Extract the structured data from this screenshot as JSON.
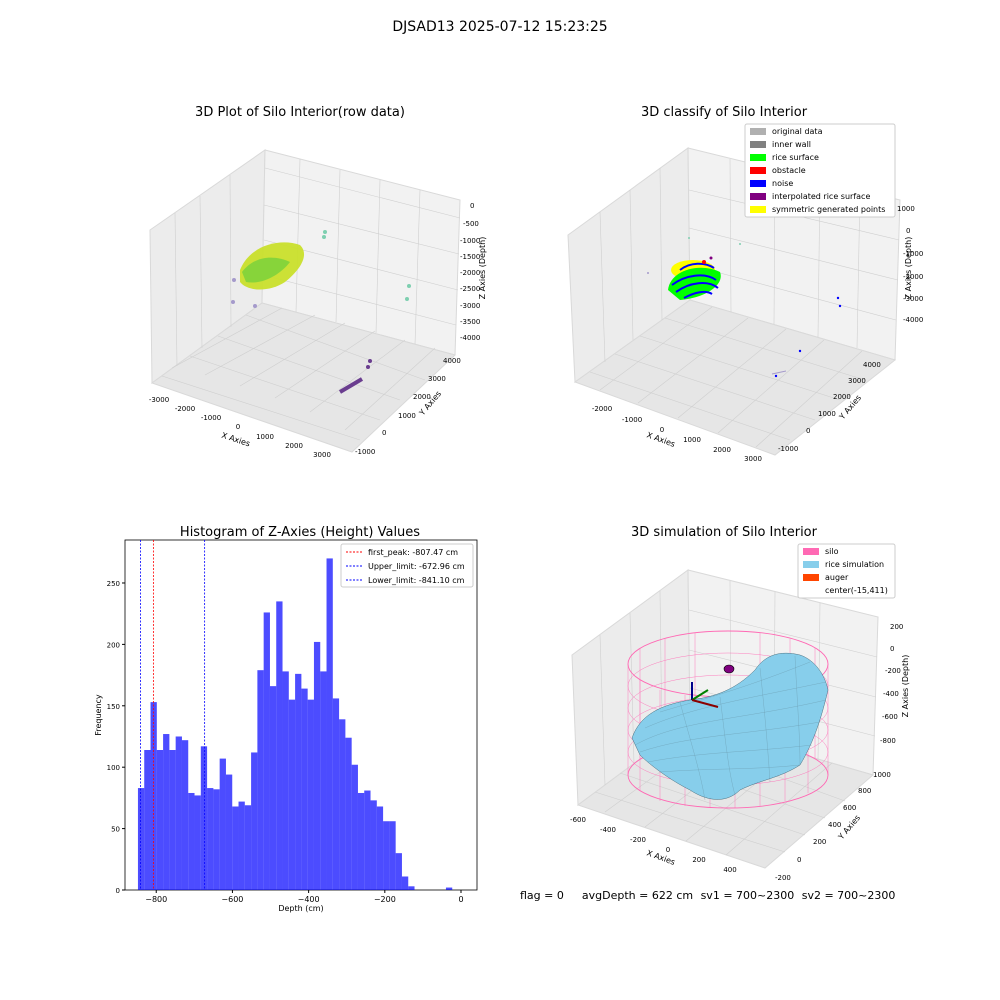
{
  "figure_title": "DJSAD13 2025-07-12 15:23:25",
  "chart_data": [
    {
      "type": "scatter",
      "title": "3D Plot of Silo Interior(row data)",
      "xlabel": "X Axies",
      "ylabel": "Y Axies",
      "zlabel": "Z Axies (Depth)",
      "x_ticks": [
        "-3000",
        "-2000",
        "-1000",
        "0",
        "1000",
        "2000",
        "3000"
      ],
      "y_ticks": [
        "-1000",
        "0",
        "1000",
        "2000",
        "3000",
        "4000"
      ],
      "z_ticks": [
        "0",
        "-500",
        "-1000",
        "-1500",
        "-2000",
        "-2500",
        "-3000",
        "-3500",
        "-4000"
      ],
      "grid": true,
      "colors": [
        "#9acd32",
        "#d4e157",
        "#7ecfb0",
        "#a59acb",
        "#6a3d8f"
      ]
    },
    {
      "type": "scatter",
      "title": "3D classify of Silo Interior",
      "xlabel": "X Axies",
      "ylabel": "Y Axies",
      "zlabel": "Z Axies (Depth)",
      "x_ticks": [
        "-2000",
        "-1000",
        "0",
        "1000",
        "2000",
        "3000"
      ],
      "y_ticks": [
        "-1000",
        "0",
        "1000",
        "2000",
        "3000",
        "4000"
      ],
      "z_ticks": [
        "1000",
        "0",
        "-1000",
        "-2000",
        "-3000",
        "-4000"
      ],
      "grid": true,
      "legend_position": "top-right",
      "legend": [
        {
          "label": "original data",
          "color": "#b0b0b0"
        },
        {
          "label": "inner wall",
          "color": "#808080"
        },
        {
          "label": "rice surface",
          "color": "#00ff00"
        },
        {
          "label": "obstacle",
          "color": "#ff0000"
        },
        {
          "label": "noise",
          "color": "#0000ff"
        },
        {
          "label": "interpolated rice surface",
          "color": "#800080"
        },
        {
          "label": "symmetric generated points",
          "color": "#ffff00"
        }
      ]
    },
    {
      "type": "bar",
      "title": "Histogram of Z-Axies (Height) Values",
      "xlabel": "Depth (cm)",
      "ylabel": "Frequency",
      "xlim": [
        -882,
        42
      ],
      "ylim": [
        0,
        285
      ],
      "x_ticks": [
        -800,
        -600,
        -400,
        -200,
        0
      ],
      "y_ticks": [
        0,
        50,
        100,
        150,
        200,
        250
      ],
      "bar_color": "#0000ff",
      "bins_start": -848,
      "bin_width": 16.5,
      "values": [
        83,
        114,
        153,
        114,
        127,
        114,
        125,
        122,
        79,
        77,
        117,
        83,
        82,
        107,
        94,
        68,
        72,
        69,
        112,
        179,
        226,
        166,
        235,
        178,
        155,
        176,
        164,
        155,
        202,
        178,
        270,
        156,
        139,
        124,
        102,
        79,
        81,
        73,
        68,
        56,
        56,
        30,
        11,
        3,
        0,
        0,
        0,
        0,
        0,
        2
      ],
      "lines": [
        {
          "label": "first_peak: -807.47 cm",
          "x": -807.47,
          "color": "#ff0000"
        },
        {
          "label": "Upper_limit: -672.96 cm",
          "x": -672.96,
          "color": "#0000ff"
        },
        {
          "label": "Lower_limit: -841.10 cm",
          "x": -841.1,
          "color": "#0000ff"
        }
      ],
      "grid": false,
      "legend_position": "top-right"
    },
    {
      "type": "surface",
      "title": "3D simulation of Silo Interior",
      "xlabel": "X Axies",
      "ylabel": "Y Axies",
      "zlabel": "Z Axies (Depth)",
      "x_ticks": [
        "-600",
        "-400",
        "-200",
        "0",
        "200",
        "400"
      ],
      "y_ticks": [
        "-200",
        "0",
        "200",
        "400",
        "600",
        "800",
        "1000"
      ],
      "z_ticks": [
        "200",
        "0",
        "-200",
        "-400",
        "-600",
        "-800"
      ],
      "grid": true,
      "legend_position": "top-right",
      "legend": [
        {
          "label": "silo",
          "color": "#ff69b4"
        },
        {
          "label": "rice simulation",
          "color": "#87ceeb"
        },
        {
          "label": "auger",
          "color": "#ff4500"
        },
        {
          "label": "center(-15,411)",
          "color": "none"
        }
      ]
    }
  ],
  "footer": {
    "flag": "flag = 0",
    "avg_depth": "avgDepth = 622 cm",
    "sv1": "sv1 = 700~2300",
    "sv2": "sv2 = 700~2300"
  }
}
